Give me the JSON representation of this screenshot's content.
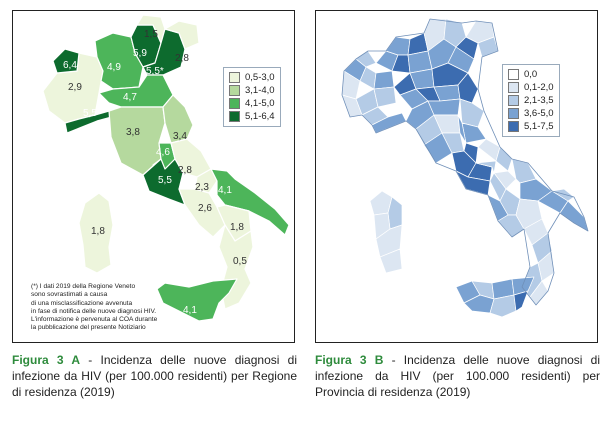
{
  "panel_a": {
    "legend": [
      {
        "label": "0,5-3,0",
        "color": "#edf5dc"
      },
      {
        "label": "3,1-4,0",
        "color": "#b5d99e"
      },
      {
        "label": "4,1-5,0",
        "color": "#4db55a"
      },
      {
        "label": "5,1-6,4",
        "color": "#0d6b2e"
      }
    ],
    "regions": [
      {
        "name": "Piemonte",
        "value": "2,9",
        "class": 0
      },
      {
        "name": "Valle d'Aosta",
        "value": "6,4",
        "class": 3
      },
      {
        "name": "Lombardia",
        "value": "4,9",
        "class": 2
      },
      {
        "name": "Trentino-Alto Adige",
        "value": "5,9",
        "class": 3
      },
      {
        "name": "Alto Adige",
        "value": "1,5",
        "class": 0
      },
      {
        "name": "Veneto",
        "value": "5,5*",
        "class": 3
      },
      {
        "name": "Friuli-Venezia Giulia",
        "value": "2,8",
        "class": 0
      },
      {
        "name": "Liguria",
        "value": "5,5",
        "class": 3
      },
      {
        "name": "Emilia-Romagna",
        "value": "4,7",
        "class": 2
      },
      {
        "name": "Toscana",
        "value": "3,8",
        "class": 1
      },
      {
        "name": "Marche",
        "value": "3,4",
        "class": 1
      },
      {
        "name": "Umbria",
        "value": "4,6",
        "class": 2
      },
      {
        "name": "Abruzzo",
        "value": "2,8",
        "class": 0
      },
      {
        "name": "Lazio",
        "value": "5,5",
        "class": 3
      },
      {
        "name": "Molise",
        "value": "2,3",
        "class": 0
      },
      {
        "name": "Campania",
        "value": "2,6",
        "class": 0
      },
      {
        "name": "Puglia",
        "value": "4,1",
        "class": 2
      },
      {
        "name": "Basilicata",
        "value": "1,8",
        "class": 0
      },
      {
        "name": "Calabria",
        "value": "0,5",
        "class": 0
      },
      {
        "name": "Sicilia",
        "value": "4,1",
        "class": 2
      },
      {
        "name": "Sardegna",
        "value": "1,8",
        "class": 0
      }
    ],
    "note_lines": [
      "(*) I dati 2019 della Regione Veneto",
      "sono sovrastimati a causa",
      "di una misclassificazione avvenuta",
      "in fase di notifica delle nuove diagnosi HIV.",
      "L'informazione è pervenuta al COA durante",
      "la pubblicazione del presente Notiziario"
    ]
  },
  "panel_b": {
    "legend": [
      {
        "label": "0,0",
        "color": "#ffffff"
      },
      {
        "label": "0,1-2,0",
        "color": "#dce6f2"
      },
      {
        "label": "2,1-3,5",
        "color": "#b4cbe6"
      },
      {
        "label": "3,6-5,0",
        "color": "#7aa2d2"
      },
      {
        "label": "5,1-7,5",
        "color": "#3c6cb0"
      }
    ]
  },
  "captions": {
    "a_label": "Figura 3 A",
    "a_text": " - Incidenza delle nuove diagnosi di infezione da HIV (per 100.000 residenti) per Regione di residenza (2019)",
    "b_label": "Figura 3 B",
    "b_text": " - Incidenza delle nuove diagnosi di infezione da HIV (per 100.000 residenti) per Provincia di residenza (2019)"
  }
}
